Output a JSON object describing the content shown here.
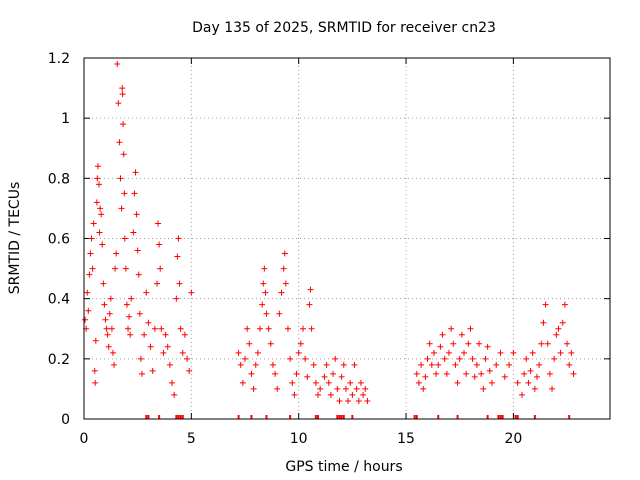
{
  "chart_data": {
    "type": "scatter",
    "title": "Day 135 of 2025, SRMTID for receiver cn23",
    "xlabel": "GPS time / hours",
    "ylabel": "SRMTID / TECUs",
    "xlim": [
      0,
      24.5
    ],
    "ylim": [
      0,
      1.2
    ],
    "xticks": [
      0,
      5,
      10,
      15,
      20
    ],
    "xtick_labels": [
      "0",
      "5",
      "10",
      "15",
      "20"
    ],
    "yticks": [
      0,
      0.2,
      0.4,
      0.6,
      0.8,
      1.0,
      1.2
    ],
    "ytick_labels": [
      "0",
      "0.2",
      "0.4",
      "0.6",
      "0.8",
      "1",
      "1.2"
    ],
    "grid": true,
    "marker": "plus",
    "color": "#ff0000",
    "series": [
      {
        "name": "SRMTID",
        "points": [
          [
            0.05,
            0.33
          ],
          [
            0.1,
            0.3
          ],
          [
            0.15,
            0.42
          ],
          [
            0.2,
            0.36
          ],
          [
            0.25,
            0.48
          ],
          [
            0.3,
            0.55
          ],
          [
            0.35,
            0.6
          ],
          [
            0.4,
            0.5
          ],
          [
            0.45,
            0.65
          ],
          [
            0.5,
            0.16
          ],
          [
            0.52,
            0.12
          ],
          [
            0.55,
            0.26
          ],
          [
            0.6,
            0.72
          ],
          [
            0.62,
            0.8
          ],
          [
            0.65,
            0.84
          ],
          [
            0.7,
            0.78
          ],
          [
            0.72,
            0.62
          ],
          [
            0.75,
            0.7
          ],
          [
            0.8,
            0.68
          ],
          [
            0.85,
            0.58
          ],
          [
            0.9,
            0.45
          ],
          [
            0.95,
            0.38
          ],
          [
            1.0,
            0.33
          ],
          [
            1.05,
            0.3
          ],
          [
            1.1,
            0.28
          ],
          [
            1.15,
            0.24
          ],
          [
            1.2,
            0.35
          ],
          [
            1.25,
            0.4
          ],
          [
            1.3,
            0.3
          ],
          [
            1.35,
            0.22
          ],
          [
            1.4,
            0.18
          ],
          [
            1.45,
            0.5
          ],
          [
            1.5,
            0.55
          ],
          [
            1.55,
            1.18
          ],
          [
            1.6,
            1.05
          ],
          [
            1.65,
            0.92
          ],
          [
            1.7,
            0.8
          ],
          [
            1.75,
            0.7
          ],
          [
            1.78,
            1.1
          ],
          [
            1.8,
            1.08
          ],
          [
            1.82,
            0.98
          ],
          [
            1.85,
            0.88
          ],
          [
            1.88,
            0.75
          ],
          [
            1.9,
            0.6
          ],
          [
            1.95,
            0.5
          ],
          [
            2.0,
            0.38
          ],
          [
            2.05,
            0.3
          ],
          [
            2.1,
            0.34
          ],
          [
            2.15,
            0.28
          ],
          [
            2.2,
            0.4
          ],
          [
            2.3,
            0.62
          ],
          [
            2.35,
            0.75
          ],
          [
            2.4,
            0.82
          ],
          [
            2.45,
            0.68
          ],
          [
            2.5,
            0.56
          ],
          [
            2.55,
            0.48
          ],
          [
            2.6,
            0.35
          ],
          [
            2.65,
            0.2
          ],
          [
            2.7,
            0.15
          ],
          [
            2.8,
            0.28
          ],
          [
            2.9,
            0.42
          ],
          [
            3.0,
            0.32
          ],
          [
            3.1,
            0.24
          ],
          [
            3.2,
            0.16
          ],
          [
            3.3,
            0.3
          ],
          [
            3.4,
            0.45
          ],
          [
            3.45,
            0.65
          ],
          [
            3.5,
            0.58
          ],
          [
            3.55,
            0.5
          ],
          [
            3.6,
            0.3
          ],
          [
            3.7,
            0.22
          ],
          [
            3.8,
            0.28
          ],
          [
            3.9,
            0.24
          ],
          [
            4.0,
            0.18
          ],
          [
            4.1,
            0.12
          ],
          [
            4.2,
            0.08
          ],
          [
            4.3,
            0.4
          ],
          [
            4.35,
            0.54
          ],
          [
            4.4,
            0.6
          ],
          [
            4.45,
            0.45
          ],
          [
            4.5,
            0.3
          ],
          [
            4.6,
            0.22
          ],
          [
            4.7,
            0.28
          ],
          [
            4.8,
            0.2
          ],
          [
            4.9,
            0.16
          ],
          [
            5.0,
            0.42
          ],
          [
            7.2,
            0.22
          ],
          [
            7.3,
            0.18
          ],
          [
            7.4,
            0.12
          ],
          [
            7.5,
            0.2
          ],
          [
            7.6,
            0.3
          ],
          [
            7.7,
            0.25
          ],
          [
            7.8,
            0.15
          ],
          [
            7.9,
            0.1
          ],
          [
            8.0,
            0.18
          ],
          [
            8.1,
            0.22
          ],
          [
            8.2,
            0.3
          ],
          [
            8.3,
            0.38
          ],
          [
            8.35,
            0.45
          ],
          [
            8.4,
            0.5
          ],
          [
            8.45,
            0.42
          ],
          [
            8.5,
            0.35
          ],
          [
            8.6,
            0.3
          ],
          [
            8.7,
            0.25
          ],
          [
            8.8,
            0.18
          ],
          [
            8.9,
            0.15
          ],
          [
            9.0,
            0.1
          ],
          [
            9.1,
            0.35
          ],
          [
            9.2,
            0.42
          ],
          [
            9.3,
            0.5
          ],
          [
            9.35,
            0.55
          ],
          [
            9.4,
            0.45
          ],
          [
            9.5,
            0.3
          ],
          [
            9.6,
            0.2
          ],
          [
            9.7,
            0.12
          ],
          [
            9.8,
            0.08
          ],
          [
            9.9,
            0.15
          ],
          [
            10.0,
            0.22
          ],
          [
            10.1,
            0.25
          ],
          [
            10.2,
            0.3
          ],
          [
            10.3,
            0.2
          ],
          [
            10.4,
            0.14
          ],
          [
            10.5,
            0.38
          ],
          [
            10.55,
            0.43
          ],
          [
            10.6,
            0.3
          ],
          [
            10.7,
            0.18
          ],
          [
            10.8,
            0.12
          ],
          [
            10.9,
            0.08
          ],
          [
            11.0,
            0.1
          ],
          [
            11.2,
            0.14
          ],
          [
            11.3,
            0.18
          ],
          [
            11.4,
            0.12
          ],
          [
            11.5,
            0.08
          ],
          [
            11.6,
            0.15
          ],
          [
            11.7,
            0.2
          ],
          [
            11.8,
            0.1
          ],
          [
            11.9,
            0.06
          ],
          [
            12.0,
            0.14
          ],
          [
            12.1,
            0.18
          ],
          [
            12.2,
            0.1
          ],
          [
            12.3,
            0.06
          ],
          [
            12.4,
            0.12
          ],
          [
            12.5,
            0.08
          ],
          [
            12.6,
            0.18
          ],
          [
            12.7,
            0.1
          ],
          [
            12.8,
            0.06
          ],
          [
            12.9,
            0.12
          ],
          [
            13.0,
            0.08
          ],
          [
            13.1,
            0.1
          ],
          [
            13.2,
            0.06
          ],
          [
            15.5,
            0.15
          ],
          [
            15.6,
            0.12
          ],
          [
            15.7,
            0.18
          ],
          [
            15.8,
            0.1
          ],
          [
            15.9,
            0.14
          ],
          [
            16.0,
            0.2
          ],
          [
            16.1,
            0.25
          ],
          [
            16.2,
            0.18
          ],
          [
            16.3,
            0.22
          ],
          [
            16.4,
            0.15
          ],
          [
            16.5,
            0.18
          ],
          [
            16.6,
            0.24
          ],
          [
            16.7,
            0.28
          ],
          [
            16.8,
            0.2
          ],
          [
            16.9,
            0.15
          ],
          [
            17.0,
            0.22
          ],
          [
            17.1,
            0.3
          ],
          [
            17.2,
            0.25
          ],
          [
            17.3,
            0.18
          ],
          [
            17.4,
            0.12
          ],
          [
            17.5,
            0.2
          ],
          [
            17.6,
            0.28
          ],
          [
            17.7,
            0.22
          ],
          [
            17.8,
            0.15
          ],
          [
            17.9,
            0.25
          ],
          [
            18.0,
            0.3
          ],
          [
            18.1,
            0.2
          ],
          [
            18.2,
            0.14
          ],
          [
            18.3,
            0.18
          ],
          [
            18.4,
            0.25
          ],
          [
            18.5,
            0.15
          ],
          [
            18.6,
            0.1
          ],
          [
            18.7,
            0.2
          ],
          [
            18.8,
            0.24
          ],
          [
            18.9,
            0.16
          ],
          [
            19.0,
            0.12
          ],
          [
            19.2,
            0.18
          ],
          [
            19.4,
            0.22
          ],
          [
            19.6,
            0.14
          ],
          [
            19.8,
            0.18
          ],
          [
            20.0,
            0.22
          ],
          [
            20.2,
            0.12
          ],
          [
            20.4,
            0.08
          ],
          [
            20.5,
            0.15
          ],
          [
            20.6,
            0.2
          ],
          [
            20.7,
            0.12
          ],
          [
            20.8,
            0.16
          ],
          [
            20.9,
            0.22
          ],
          [
            21.0,
            0.1
          ],
          [
            21.1,
            0.14
          ],
          [
            21.2,
            0.18
          ],
          [
            21.3,
            0.25
          ],
          [
            21.4,
            0.32
          ],
          [
            21.5,
            0.38
          ],
          [
            21.6,
            0.25
          ],
          [
            21.7,
            0.15
          ],
          [
            21.8,
            0.1
          ],
          [
            21.9,
            0.2
          ],
          [
            22.0,
            0.28
          ],
          [
            22.1,
            0.3
          ],
          [
            22.2,
            0.22
          ],
          [
            22.3,
            0.32
          ],
          [
            22.4,
            0.38
          ],
          [
            22.5,
            0.25
          ],
          [
            22.6,
            0.18
          ],
          [
            22.7,
            0.22
          ],
          [
            22.8,
            0.15
          ]
        ]
      }
    ],
    "rug_x": [
      2.9,
      3.0,
      3.5,
      4.3,
      4.4,
      4.5,
      4.6,
      7.2,
      7.8,
      8.5,
      9.6,
      10.8,
      10.9,
      11.8,
      11.9,
      12.0,
      12.1,
      12.5,
      15.4,
      15.5,
      16.5,
      17.4,
      18.8,
      19.3,
      19.4,
      19.5,
      20.1,
      20.2,
      21.0,
      22.6
    ]
  }
}
